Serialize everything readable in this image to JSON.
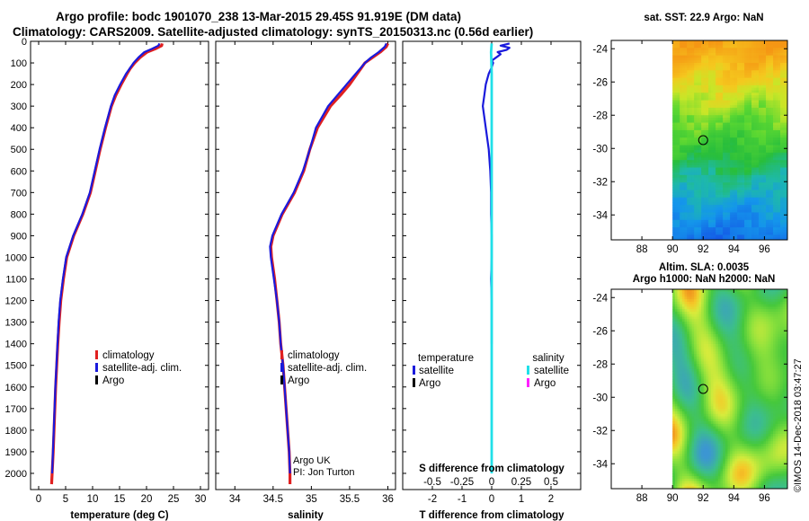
{
  "header": {
    "line1": "Argo profile: bodc 1901070_238 13-Mar-2015 29.45S 91.919E (DM data)",
    "line2": "Climatology: CARS2009. Satellite-adjusted climatology: synTS_20150313.nc (0.56d earlier)"
  },
  "footer_stamp": "©IMOS 14-Dec-2018 03:47:27",
  "colors": {
    "climatology": "#e02020",
    "satellite": "#1a1adc",
    "argo": "#000000",
    "satellite_salinity": "#20e0e8",
    "argo_salinity": "#ff20ff",
    "marker": "#000000"
  },
  "depth_axis": {
    "ticks": [
      0,
      100,
      200,
      300,
      400,
      500,
      600,
      700,
      800,
      900,
      1000,
      1100,
      1200,
      1300,
      1400,
      1500,
      1600,
      1700,
      1800,
      1900,
      2000
    ],
    "range": [
      0,
      2075
    ]
  },
  "chart_data": [
    {
      "id": "temperature",
      "type": "line",
      "xlabel": "temperature (deg C)",
      "xlim": [
        -1.5,
        31.5
      ],
      "ylim": [
        2075,
        0
      ],
      "x_ticks": [
        0,
        5,
        10,
        15,
        20,
        25,
        30
      ],
      "legend": [
        "climatology",
        "satellite-adj. clim.",
        "Argo"
      ],
      "series": [
        {
          "name": "climatology",
          "depth": [
            10,
            20,
            35,
            50,
            75,
            100,
            125,
            150,
            200,
            250,
            300,
            400,
            500,
            600,
            700,
            800,
            900,
            1000,
            1100,
            1200,
            1300,
            1400,
            1500,
            1600,
            1700,
            1800,
            1900,
            2000,
            2050
          ],
          "values": [
            22.9,
            22.8,
            21.6,
            20.1,
            18.8,
            17.8,
            17.0,
            16.4,
            15.3,
            14.3,
            13.5,
            12.4,
            11.4,
            10.5,
            9.6,
            8.2,
            6.5,
            5.2,
            4.6,
            4.1,
            3.8,
            3.55,
            3.35,
            3.15,
            3.0,
            2.85,
            2.7,
            2.5,
            2.4
          ]
        },
        {
          "name": "satellite-adj. clim.",
          "depth": [
            10,
            20,
            35,
            50,
            75,
            100,
            125,
            150,
            200,
            250,
            300,
            400,
            500,
            600,
            700,
            800,
            900,
            1000,
            1100,
            1200,
            1300,
            1400,
            1500,
            1600,
            1700,
            1800,
            1900,
            2000
          ],
          "values": [
            22.4,
            22.2,
            21.0,
            19.6,
            18.5,
            17.6,
            16.9,
            16.2,
            15.1,
            14.1,
            13.4,
            12.3,
            11.3,
            10.4,
            9.5,
            8.1,
            6.4,
            5.1,
            4.5,
            4.0,
            3.7,
            3.5,
            3.3,
            3.1,
            2.95,
            2.8,
            2.65,
            2.5
          ]
        }
      ]
    },
    {
      "id": "salinity",
      "type": "line",
      "xlabel": "salinity",
      "xlim": [
        33.75,
        36.1
      ],
      "ylim": [
        2075,
        0
      ],
      "x_ticks": [
        34,
        34.5,
        35,
        35.5,
        36
      ],
      "annotations": [
        "Argo UK",
        "PI: Jon Turton"
      ],
      "legend": [
        "climatology",
        "satellite-adj. clim.",
        "Argo"
      ],
      "series": [
        {
          "name": "climatology",
          "depth": [
            10,
            25,
            50,
            75,
            100,
            125,
            150,
            200,
            250,
            300,
            400,
            500,
            600,
            700,
            800,
            900,
            950,
            1000,
            1100,
            1200,
            1300,
            1400,
            1500,
            1600,
            1700,
            1800,
            1900,
            2000,
            2050
          ],
          "values": [
            36.0,
            35.98,
            35.9,
            35.8,
            35.7,
            35.65,
            35.6,
            35.5,
            35.38,
            35.25,
            35.08,
            34.98,
            34.9,
            34.78,
            34.62,
            34.5,
            34.47,
            34.48,
            34.52,
            34.55,
            34.58,
            34.6,
            34.63,
            34.65,
            34.67,
            34.69,
            34.71,
            34.72,
            34.72
          ]
        },
        {
          "name": "satellite-adj. clim.",
          "depth": [
            10,
            25,
            50,
            75,
            100,
            125,
            150,
            200,
            250,
            300,
            400,
            500,
            600,
            700,
            800,
            900,
            950,
            1000,
            1100,
            1200,
            1300,
            1400,
            1500,
            1600,
            1700,
            1800,
            1900,
            2000
          ],
          "values": [
            35.98,
            35.96,
            35.88,
            35.78,
            35.7,
            35.64,
            35.58,
            35.46,
            35.34,
            35.22,
            35.06,
            34.98,
            34.89,
            34.77,
            34.61,
            34.49,
            34.46,
            34.47,
            34.51,
            34.55,
            34.58,
            34.6,
            34.63,
            34.65,
            34.67,
            34.69,
            34.71,
            34.72
          ]
        }
      ]
    },
    {
      "id": "difference",
      "type": "line",
      "xlabel": "T difference from climatology",
      "xlabel_top": "S difference from climatology",
      "xlim": [
        -3,
        3
      ],
      "ylim": [
        2075,
        0
      ],
      "x_ticks": [
        -2,
        -1,
        0,
        1,
        2
      ],
      "x_ticks_top": [
        "-0.5",
        "-0.25",
        "0",
        "0.25",
        "0.5"
      ],
      "legend_groups": [
        {
          "title": "temperature",
          "items": [
            "satellite",
            "Argo"
          ]
        },
        {
          "title": "salinity",
          "items": [
            "satellite",
            "Argo"
          ]
        }
      ],
      "series": [
        {
          "name": "temperature satellite",
          "depth": [
            10,
            20,
            30,
            40,
            50,
            60,
            70,
            80,
            90,
            100,
            120,
            150,
            200,
            250,
            300,
            400,
            500,
            600,
            700,
            800,
            900,
            1000,
            1100,
            1200,
            1300,
            1400
          ],
          "values": [
            0.6,
            0.3,
            0.6,
            0.5,
            0.2,
            0.3,
            0.2,
            0.1,
            0.0,
            0.05,
            0.0,
            -0.1,
            -0.2,
            -0.25,
            -0.3,
            -0.2,
            -0.1,
            -0.05,
            -0.02,
            -0.02,
            0.0,
            0.0,
            -0.02,
            0.0,
            0.0,
            0.0
          ]
        },
        {
          "name": "salinity satellite",
          "depth": [
            10,
            50,
            100,
            150,
            200,
            250,
            300,
            400,
            500,
            700,
            1000,
            1400,
            1800,
            2000
          ],
          "values": [
            0.0,
            -0.02,
            -0.01,
            0.0,
            0.0,
            0.0,
            0.0,
            0.0,
            0.0,
            0.0,
            0.0,
            0.0,
            0.0,
            0.0
          ]
        }
      ]
    },
    {
      "id": "sst-map",
      "type": "heatmap",
      "title": "sat. SST: 22.9 Argo: NaN",
      "x_ticks": [
        "88",
        "90",
        "92",
        "94",
        "96"
      ],
      "y_ticks": [
        "-24",
        "-26",
        "-28",
        "-30",
        "-32",
        "-34"
      ],
      "xlim": [
        86,
        97.5
      ],
      "ylim": [
        -35.5,
        -23.5
      ],
      "data_region": {
        "lon": [
          90,
          97.5
        ],
        "lat": [
          -35.5,
          -23.5
        ]
      },
      "marker": {
        "lon": 92,
        "lat": -29.5
      }
    },
    {
      "id": "sla-map",
      "type": "heatmap",
      "title": "Altim. SLA: 0.0035",
      "subtitle": "Argo h1000: NaN h2000: NaN",
      "x_ticks": [
        "88",
        "90",
        "92",
        "94",
        "96"
      ],
      "y_ticks": [
        "-24",
        "-26",
        "-28",
        "-30",
        "-32",
        "-34"
      ],
      "xlim": [
        86,
        97.5
      ],
      "ylim": [
        -35.5,
        -23.5
      ],
      "data_region": {
        "lon": [
          90,
          97.5
        ],
        "lat": [
          -35.5,
          -23.5
        ]
      },
      "marker": {
        "lon": 92,
        "lat": -29.5
      }
    }
  ]
}
